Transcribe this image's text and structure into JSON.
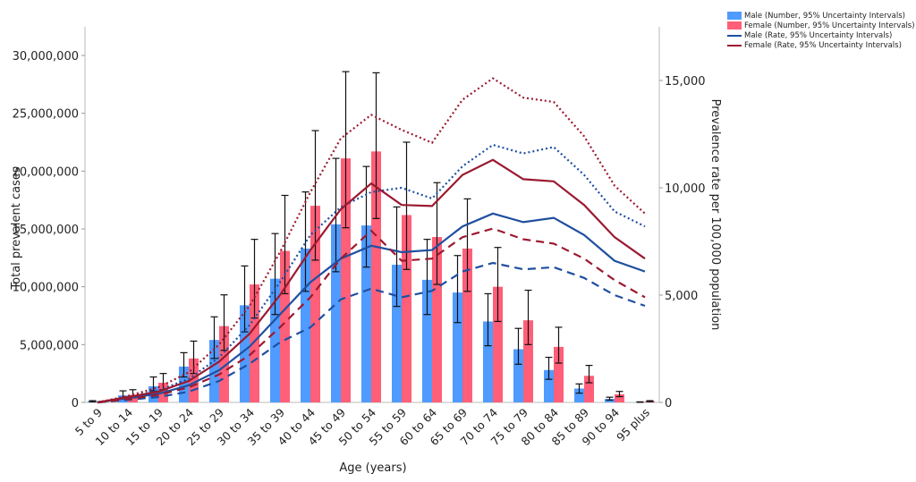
{
  "chart_data": {
    "type": "bar+line",
    "title": "",
    "xlabel": "Age (years)",
    "ylabel": "Total prevalent cases",
    "y2label": "Prevalence rate per 100,000 population",
    "ylim": [
      0,
      30000000
    ],
    "y2lim": [
      0,
      15000
    ],
    "yticks": [
      "0",
      "5,000,000",
      "10,000,000",
      "15,000,000",
      "20,000,000",
      "25,000,000",
      "30,000,000"
    ],
    "y2ticks": [
      "0",
      "5,000",
      "10,000",
      "15,000"
    ],
    "categories": [
      "5 to 9",
      "10 to 14",
      "15 to 19",
      "20 to 24",
      "25 to 29",
      "30 to 34",
      "35 to 39",
      "40 to 44",
      "45 to 49",
      "50 to 54",
      "55 to 59",
      "60 to 64",
      "65 to 69",
      "70 to 74",
      "75 to 79",
      "80 to 84",
      "85 to 89",
      "90 to 94",
      "95 plus"
    ],
    "legend": [
      "Male (Number, 95% Uncertainty Intervals)",
      "Female (Number, 95% Uncertainty Intervals)",
      "Male (Rate, 95% Uncertainty Intervals)",
      "Female (Rate, 95% Uncertainty Intervals)"
    ],
    "legend_position": "top-right",
    "colors": {
      "male_bar": "#4f9bff",
      "female_bar": "#ff5f78",
      "male_line": "#1f4fa0",
      "female_line": "#9a1a30"
    },
    "bars": [
      {
        "name": "Male (Number)",
        "values": [
          100000,
          600000,
          1400000,
          3100000,
          5400000,
          8400000,
          10700000,
          13300000,
          15400000,
          15300000,
          11900000,
          10600000,
          9500000,
          7000000,
          4600000,
          2800000,
          1200000,
          300000,
          30000
        ],
        "lower": [
          50000,
          400000,
          1000000,
          2200000,
          3800000,
          6100000,
          7600000,
          9600000,
          11300000,
          11700000,
          8300000,
          7600000,
          6900000,
          4900000,
          3300000,
          2000000,
          800000,
          200000,
          10000
        ],
        "upper": [
          150000,
          1000000,
          2200000,
          4300000,
          7400000,
          11800000,
          14600000,
          18200000,
          21100000,
          20400000,
          16900000,
          14100000,
          12700000,
          9400000,
          6400000,
          3900000,
          1600000,
          450000,
          50000
        ]
      },
      {
        "name": "Female (Number)",
        "values": [
          50000,
          650000,
          1700000,
          3800000,
          6600000,
          10200000,
          13100000,
          17000000,
          21100000,
          21700000,
          16200000,
          14300000,
          13300000,
          10000000,
          7100000,
          4800000,
          2300000,
          700000,
          100000
        ],
        "lower": [
          20000,
          400000,
          1100000,
          2500000,
          4500000,
          7300000,
          9400000,
          12300000,
          15100000,
          15900000,
          11500000,
          10200000,
          9600000,
          7000000,
          5000000,
          3400000,
          1700000,
          500000,
          60000
        ],
        "upper": [
          90000,
          1100000,
          2500000,
          5300000,
          9300000,
          14100000,
          17900000,
          23500000,
          28600000,
          28500000,
          22500000,
          19000000,
          17600000,
          13400000,
          9700000,
          6500000,
          3200000,
          950000,
          150000
        ]
      }
    ],
    "lines": [
      {
        "name": "Male (Rate)",
        "values": [
          0,
          200,
          400,
          800,
          1500,
          2600,
          4100,
          5600,
          6700,
          7300,
          7000,
          7100,
          8200,
          8800,
          8400,
          8600,
          7800,
          6600,
          6100
        ],
        "lower": [
          0,
          120,
          250,
          500,
          1000,
          1800,
          2800,
          3500,
          4800,
          5300,
          4900,
          5200,
          6100,
          6500,
          6200,
          6300,
          5800,
          5000,
          4500
        ],
        "upper": [
          0,
          250,
          550,
          1100,
          2100,
          3600,
          5600,
          7800,
          9100,
          9800,
          10000,
          9500,
          11000,
          12000,
          11600,
          11900,
          10600,
          8900,
          8200
        ]
      },
      {
        "name": "Female (Rate)",
        "values": [
          0,
          250,
          500,
          1000,
          1900,
          3200,
          5000,
          7100,
          9000,
          10200,
          9200,
          9150,
          10600,
          11300,
          10400,
          10300,
          9200,
          7700,
          6700
        ],
        "lower": [
          0,
          150,
          350,
          700,
          1300,
          2200,
          3500,
          4900,
          6700,
          8000,
          6600,
          6700,
          7700,
          8100,
          7600,
          7400,
          6700,
          5700,
          4900
        ],
        "upper": [
          0,
          300,
          700,
          1400,
          2700,
          4500,
          7000,
          9800,
          12300,
          13400,
          12700,
          12100,
          14100,
          15100,
          14200,
          14000,
          12400,
          10100,
          8800
        ]
      }
    ]
  }
}
